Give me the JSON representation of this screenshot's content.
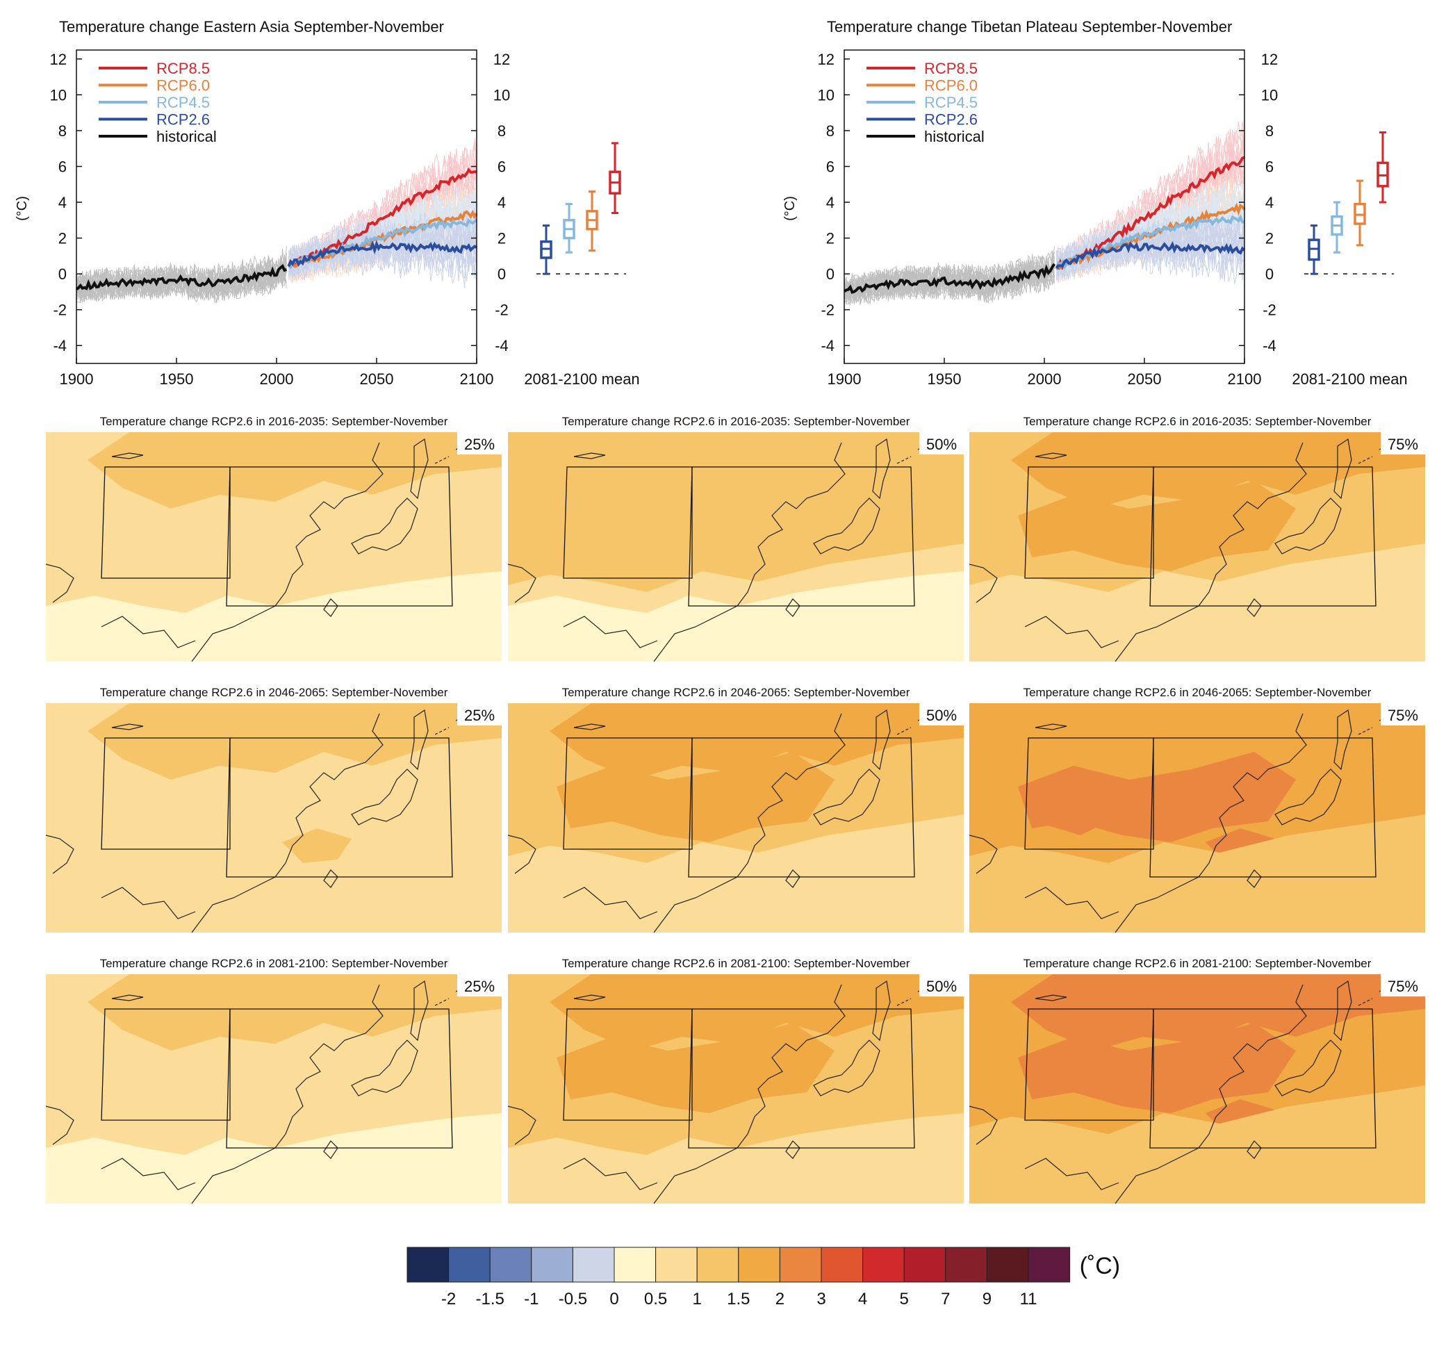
{
  "chart_data": [
    {
      "type": "line",
      "title": "Temperature change Eastern Asia September-November",
      "ylabel": "(°C)",
      "xlabel": "",
      "xlim": [
        1900,
        2100
      ],
      "ylim": [
        -5,
        12.5
      ],
      "xticks": [
        "1900",
        "1950",
        "2000",
        "2050",
        "2100"
      ],
      "yticks": [
        "12",
        "10",
        "8",
        "6",
        "4",
        "2",
        "0",
        "-2",
        "-4"
      ],
      "legend_position": "top-left",
      "series": [
        {
          "name": "RCP8.5",
          "color": "#d7262b",
          "x": [
            2006,
            2020,
            2030,
            2040,
            2050,
            2060,
            2070,
            2080,
            2090,
            2100
          ],
          "y": [
            0.5,
            1.1,
            1.6,
            2.2,
            2.9,
            3.6,
            4.3,
            4.9,
            5.4,
            5.8
          ]
        },
        {
          "name": "RCP6.0",
          "color": "#e8813a",
          "x": [
            2006,
            2020,
            2030,
            2040,
            2050,
            2060,
            2070,
            2080,
            2090,
            2100
          ],
          "y": [
            0.5,
            0.9,
            1.2,
            1.5,
            1.9,
            2.3,
            2.6,
            2.9,
            3.2,
            3.4
          ]
        },
        {
          "name": "RCP4.5",
          "color": "#86b7dd",
          "x": [
            2006,
            2020,
            2030,
            2040,
            2050,
            2060,
            2070,
            2080,
            2090,
            2100
          ],
          "y": [
            0.5,
            1.0,
            1.3,
            1.6,
            2.0,
            2.3,
            2.5,
            2.7,
            2.8,
            2.9
          ]
        },
        {
          "name": "RCP2.6",
          "color": "#2b4d9c",
          "x": [
            2006,
            2020,
            2030,
            2040,
            2050,
            2060,
            2070,
            2080,
            2090,
            2100
          ],
          "y": [
            0.5,
            1.0,
            1.3,
            1.4,
            1.5,
            1.5,
            1.5,
            1.5,
            1.4,
            1.4
          ]
        },
        {
          "name": "historical",
          "color": "#111111",
          "x": [
            1900,
            1910,
            1920,
            1930,
            1940,
            1950,
            1960,
            1970,
            1980,
            1990,
            2000,
            2005
          ],
          "y": [
            -0.8,
            -0.6,
            -0.5,
            -0.5,
            -0.4,
            -0.3,
            -0.5,
            -0.5,
            -0.3,
            -0.1,
            0.1,
            0.4
          ]
        }
      ],
      "boxes_label": "2081-2100 mean",
      "boxes": [
        {
          "name": "RCP2.6",
          "color": "#2b4d9c",
          "min": 0.0,
          "q1": 0.9,
          "median": 1.4,
          "q3": 1.8,
          "max": 2.7
        },
        {
          "name": "RCP4.5",
          "color": "#86b7dd",
          "min": 1.2,
          "q1": 2.0,
          "median": 2.5,
          "q3": 3.0,
          "max": 3.9
        },
        {
          "name": "RCP6.0",
          "color": "#e8813a",
          "min": 1.3,
          "q1": 2.5,
          "median": 3.0,
          "q3": 3.5,
          "max": 4.6
        },
        {
          "name": "RCP8.5",
          "color": "#d7262b",
          "min": 3.4,
          "q1": 4.5,
          "median": 5.1,
          "q3": 5.7,
          "max": 7.3
        }
      ]
    },
    {
      "type": "line",
      "title": "Temperature change Tibetan Plateau September-November",
      "ylabel": "(°C)",
      "xlabel": "",
      "xlim": [
        1900,
        2100
      ],
      "ylim": [
        -5,
        12.5
      ],
      "xticks": [
        "1900",
        "1950",
        "2000",
        "2050",
        "2100"
      ],
      "yticks": [
        "12",
        "10",
        "8",
        "6",
        "4",
        "2",
        "0",
        "-2",
        "-4"
      ],
      "legend_position": "top-left",
      "series": [
        {
          "name": "RCP8.5",
          "color": "#d7262b",
          "x": [
            2006,
            2020,
            2030,
            2040,
            2050,
            2060,
            2070,
            2080,
            2090,
            2100
          ],
          "y": [
            0.4,
            1.1,
            1.7,
            2.4,
            3.1,
            3.9,
            4.6,
            5.3,
            5.9,
            6.4
          ]
        },
        {
          "name": "RCP6.0",
          "color": "#e8813a",
          "x": [
            2006,
            2020,
            2030,
            2040,
            2050,
            2060,
            2070,
            2080,
            2090,
            2100
          ],
          "y": [
            0.4,
            0.9,
            1.3,
            1.7,
            2.1,
            2.5,
            2.9,
            3.2,
            3.5,
            3.7
          ]
        },
        {
          "name": "RCP4.5",
          "color": "#86b7dd",
          "x": [
            2006,
            2020,
            2030,
            2040,
            2050,
            2060,
            2070,
            2080,
            2090,
            2100
          ],
          "y": [
            0.4,
            1.0,
            1.4,
            1.8,
            2.2,
            2.5,
            2.7,
            2.9,
            3.0,
            3.0
          ]
        },
        {
          "name": "RCP2.6",
          "color": "#2b4d9c",
          "x": [
            2006,
            2020,
            2030,
            2040,
            2050,
            2060,
            2070,
            2080,
            2090,
            2100
          ],
          "y": [
            0.4,
            1.0,
            1.3,
            1.5,
            1.5,
            1.5,
            1.5,
            1.4,
            1.4,
            1.3
          ]
        },
        {
          "name": "historical",
          "color": "#111111",
          "x": [
            1900,
            1910,
            1920,
            1930,
            1940,
            1950,
            1960,
            1970,
            1980,
            1990,
            2000,
            2005
          ],
          "y": [
            -0.9,
            -0.8,
            -0.6,
            -0.5,
            -0.5,
            -0.4,
            -0.5,
            -0.6,
            -0.4,
            -0.1,
            0.1,
            0.4
          ]
        }
      ],
      "boxes_label": "2081-2100 mean",
      "boxes": [
        {
          "name": "RCP2.6",
          "color": "#2b4d9c",
          "min": 0.0,
          "q1": 0.8,
          "median": 1.4,
          "q3": 1.9,
          "max": 2.7
        },
        {
          "name": "RCP4.5",
          "color": "#86b7dd",
          "min": 1.2,
          "q1": 2.2,
          "median": 2.7,
          "q3": 3.2,
          "max": 4.0
        },
        {
          "name": "RCP6.0",
          "color": "#e8813a",
          "min": 1.6,
          "q1": 2.8,
          "median": 3.3,
          "q3": 3.9,
          "max": 5.2
        },
        {
          "name": "RCP8.5",
          "color": "#d7262b",
          "min": 4.0,
          "q1": 4.9,
          "median": 5.5,
          "q3": 6.2,
          "max": 7.9
        }
      ]
    },
    {
      "type": "heatmap",
      "panels": [
        {
          "title": "Temperature change RCP2.6 in 2016-2035: September-November",
          "percentile": "25%",
          "base_color": "#fbdc98",
          "regions": [
            {
              "color": "#fff6cc",
              "level": "0-0.5"
            },
            {
              "color": "#f6c56a",
              "level": "1-1.5"
            }
          ]
        },
        {
          "title": "Temperature change RCP2.6 in 2016-2035: September-November",
          "percentile": "50%",
          "base_color": "#f6c56a",
          "regions": [
            {
              "color": "#fbdc98",
              "level": "0.5-1"
            },
            {
              "color": "#fff6cc",
              "level": "0-0.5"
            }
          ]
        },
        {
          "title": "Temperature change RCP2.6 in 2016-2035: September-November",
          "percentile": "75%",
          "base_color": "#f6c56a",
          "regions": [
            {
              "color": "#f0a943",
              "level": "1.5-2"
            },
            {
              "color": "#fbdc98",
              "level": "0.5-1"
            }
          ]
        },
        {
          "title": "Temperature change RCP2.6 in 2046-2065: September-November",
          "percentile": "25%",
          "base_color": "#fbdc98",
          "regions": [
            {
              "color": "#f6c56a",
              "level": "1-1.5"
            }
          ]
        },
        {
          "title": "Temperature change RCP2.6 in 2046-2065: September-November",
          "percentile": "50%",
          "base_color": "#f6c56a",
          "regions": [
            {
              "color": "#f0a943",
              "level": "1.5-2"
            },
            {
              "color": "#fbdc98",
              "level": "0.5-1"
            }
          ]
        },
        {
          "title": "Temperature change RCP2.6 in 2046-2065: September-November",
          "percentile": "75%",
          "base_color": "#f0a943",
          "regions": [
            {
              "color": "#ea8640",
              "level": "2-3"
            },
            {
              "color": "#f6c56a",
              "level": "1-1.5"
            }
          ]
        },
        {
          "title": "Temperature change RCP2.6 in 2081-2100: September-November",
          "percentile": "25%",
          "base_color": "#fbdc98",
          "regions": [
            {
              "color": "#f6c56a",
              "level": "1-1.5"
            },
            {
              "color": "#fff6cc",
              "level": "0-0.5"
            }
          ]
        },
        {
          "title": "Temperature change RCP2.6 in 2081-2100: September-November",
          "percentile": "50%",
          "base_color": "#f6c56a",
          "regions": [
            {
              "color": "#f0a943",
              "level": "1.5-2"
            },
            {
              "color": "#fbdc98",
              "level": "0.5-1"
            }
          ]
        },
        {
          "title": "Temperature change RCP2.6 in 2081-2100: September-November",
          "percentile": "75%",
          "base_color": "#f0a943",
          "regions": [
            {
              "color": "#ea8640",
              "level": "2-3"
            },
            {
              "color": "#f6c56a",
              "level": "1-1.5"
            }
          ]
        }
      ]
    },
    {
      "type": "colorbar",
      "unit_label": "(˚C)",
      "colors": [
        "#1b2a55",
        "#3f5f9e",
        "#6b82b8",
        "#9caed4",
        "#cdd6e6",
        "#fff6cc",
        "#fbdc98",
        "#f6c56a",
        "#f0a943",
        "#ea8640",
        "#e2562f",
        "#d22a2a",
        "#b21f2a",
        "#85202a",
        "#5a1a20",
        "#5e1a3e"
      ],
      "tick_labels": [
        "-2",
        "-1.5",
        "-1",
        "-0.5",
        "0",
        "0.5",
        "1",
        "1.5",
        "2",
        "3",
        "4",
        "5",
        "7",
        "9",
        "11"
      ]
    }
  ]
}
